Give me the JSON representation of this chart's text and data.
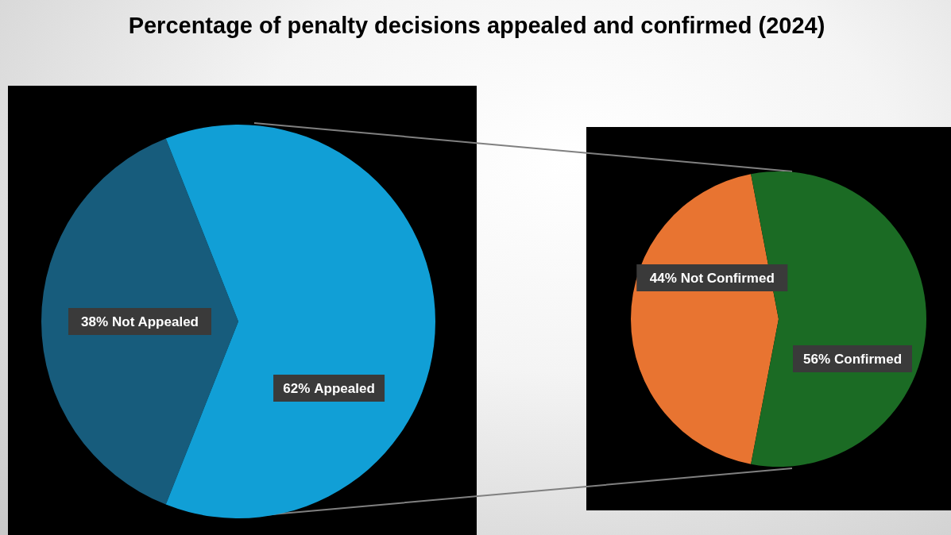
{
  "chart_data": [
    {
      "type": "pie",
      "title": "Percentage of penalty decisions appealed and confirmed (2024)",
      "categories": [
        "Not Appealed",
        "Appealed"
      ],
      "values": [
        38,
        62
      ],
      "colors": [
        "#175c7c",
        "#119fd6"
      ],
      "value_labels": [
        "38%",
        "62%"
      ],
      "legend": false
    },
    {
      "type": "pie",
      "categories": [
        "Not Confirmed",
        "Confirmed"
      ],
      "values": [
        44,
        56
      ],
      "colors": [
        "#e87431",
        "#1b6b24"
      ],
      "value_labels": [
        "44%",
        "56%"
      ],
      "legend": false
    }
  ]
}
